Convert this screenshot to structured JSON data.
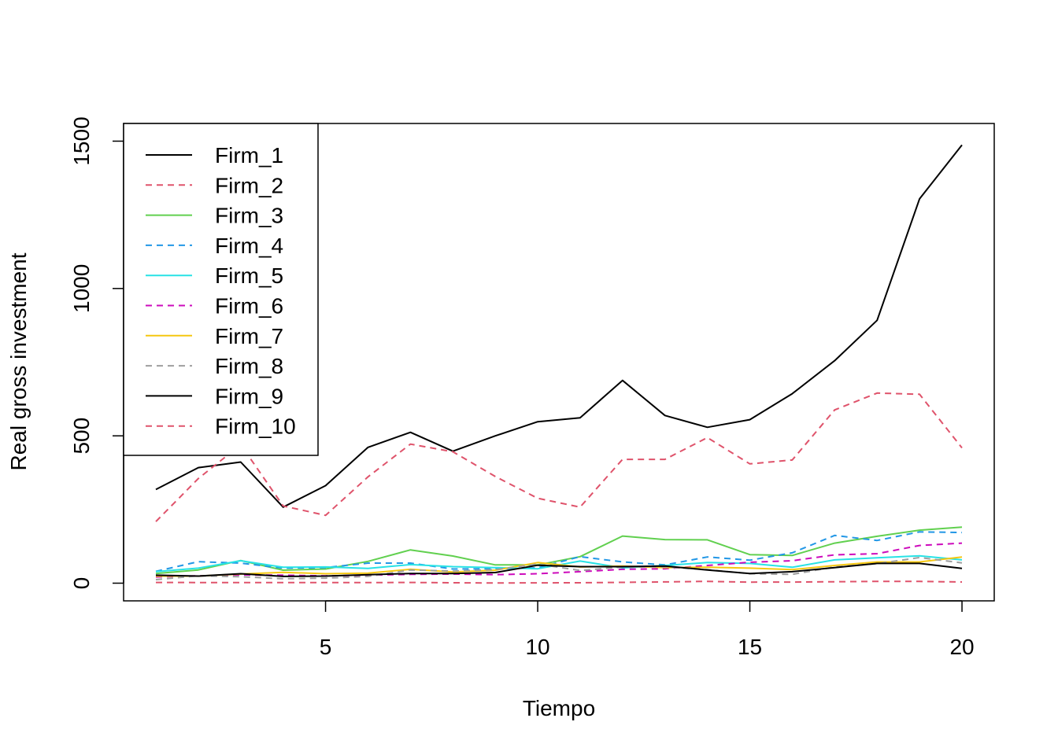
{
  "chart_data": {
    "type": "line",
    "title": "",
    "xlabel": "Tiempo",
    "ylabel": "Real gross investment",
    "xlim": [
      1,
      20
    ],
    "ylim": [
      0,
      1500
    ],
    "x_ticks": [
      5,
      10,
      15,
      20
    ],
    "y_ticks": [
      0,
      500,
      1000,
      1500
    ],
    "grid": false,
    "legend_position": "top-left",
    "x": [
      1,
      2,
      3,
      4,
      5,
      6,
      7,
      8,
      9,
      10,
      11,
      12,
      13,
      14,
      15,
      16,
      17,
      18,
      19,
      20
    ],
    "series": [
      {
        "name": "Firm_1",
        "color": "#000000",
        "dash": "solid",
        "values": [
          318,
          392,
          411,
          258,
          331,
          461,
          512,
          448,
          500,
          548,
          561,
          688,
          569,
          529,
          555,
          643,
          755,
          892,
          1304,
          1487
        ]
      },
      {
        "name": "Firm_2",
        "color": "#DF536B",
        "dash": "dashed",
        "values": [
          209,
          355,
          470,
          262,
          230,
          361,
          472,
          446,
          362,
          288,
          258,
          420,
          420,
          494,
          405,
          418,
          588,
          645,
          641,
          459
        ]
      },
      {
        "name": "Firm_3",
        "color": "#61D04F",
        "dash": "solid",
        "values": [
          33,
          45,
          77,
          44,
          48,
          74,
          113,
          92,
          62,
          62,
          90,
          160,
          148,
          147,
          97,
          94,
          136,
          159,
          180,
          190
        ]
      },
      {
        "name": "Firm_4",
        "color": "#2297E6",
        "dash": "dashed",
        "values": [
          40,
          73,
          68,
          51,
          53,
          68,
          68,
          48,
          49,
          52,
          90,
          72,
          62,
          89,
          78,
          103,
          162,
          145,
          174,
          172
        ]
      },
      {
        "name": "Firm_5",
        "color": "#28E2E5",
        "dash": "solid",
        "values": [
          39,
          51,
          76,
          54,
          55,
          50,
          63,
          56,
          53,
          49,
          75,
          52,
          60,
          70,
          67,
          54,
          79,
          86,
          93,
          79
        ]
      },
      {
        "name": "Firm_6",
        "color": "#CD0BBC",
        "dash": "dashed",
        "values": [
          21,
          25,
          28,
          27,
          25,
          27,
          30,
          31,
          29,
          32,
          39,
          47,
          49,
          60,
          71,
          76,
          96,
          100,
          128,
          136
        ]
      },
      {
        "name": "Firm_7",
        "color": "#F5C710",
        "dash": "solid",
        "values": [
          24,
          24,
          31,
          37,
          32,
          34,
          47,
          38,
          44,
          70,
          55,
          58,
          53,
          54,
          51,
          46,
          60,
          72,
          72,
          89
        ]
      },
      {
        "name": "Firm_8",
        "color": "#9E9E9E",
        "dash": "dashed",
        "values": [
          12,
          25,
          22,
          15,
          17,
          23,
          45,
          41,
          46,
          65,
          43,
          55,
          55,
          46,
          32,
          30,
          55,
          66,
          87,
          69
        ]
      },
      {
        "name": "Firm_9",
        "color": "#000000",
        "dash": "solid",
        "values": [
          27,
          24,
          32,
          23,
          24,
          29,
          33,
          33,
          36,
          61,
          56,
          56,
          58,
          45,
          33,
          39,
          53,
          67,
          67,
          50
        ]
      },
      {
        "name": "Firm_10",
        "color": "#DF536B",
        "dash": "dashed",
        "values": [
          2.5,
          2.2,
          2.3,
          1.9,
          1.8,
          1.9,
          2.5,
          1.3,
          0.5,
          1.1,
          1.4,
          2.7,
          4.2,
          6.1,
          3.6,
          3.8,
          4.9,
          6.2,
          6.0,
          4.1
        ]
      }
    ]
  }
}
